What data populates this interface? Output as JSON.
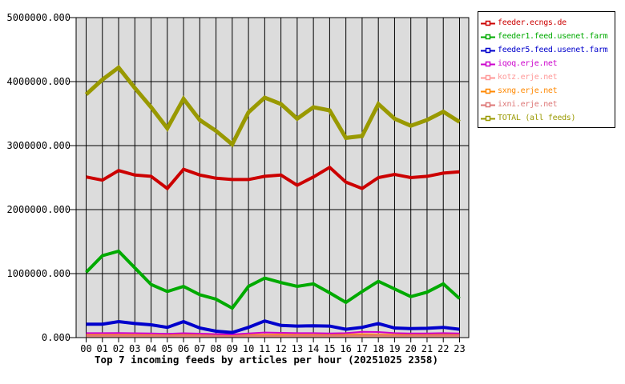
{
  "chart_data": {
    "type": "line",
    "title": "Top 7 incoming feeds by articles per hour (20251025 2358)",
    "plot_bg": "#dcdcdc",
    "grid_color": "#000000",
    "ylim": [
      0,
      5000000
    ],
    "y_tick_labels": [
      "5000000.000",
      "4000000.000",
      "3000000.000",
      "2000000.000",
      "1000000.000",
      "0.000"
    ],
    "x_labels": [
      "00",
      "01",
      "02",
      "03",
      "04",
      "05",
      "06",
      "07",
      "08",
      "09",
      "10",
      "11",
      "12",
      "13",
      "14",
      "15",
      "16",
      "17",
      "18",
      "19",
      "20",
      "21",
      "22",
      "23"
    ],
    "series": [
      {
        "name": "kotz.erje.net",
        "color": "#ff9999",
        "fill": "#e59080",
        "style": "area",
        "width": 2,
        "values": [
          55000,
          52000,
          52000,
          50000,
          50000,
          45000,
          65000,
          50000,
          45000,
          40000,
          50000,
          52000,
          52000,
          50000,
          50000,
          50000,
          55000,
          60000,
          55000,
          50000,
          52000,
          55000,
          60000,
          55000
        ]
      },
      {
        "name": "sxng.erje.net",
        "color": "#ff8800",
        "style": "line",
        "width": 2,
        "values": [
          40000,
          40000,
          40000,
          40000,
          38000,
          35000,
          60000,
          40000,
          35000,
          30000,
          40000,
          42000,
          45000,
          40000,
          40000,
          40000,
          45000,
          50000,
          45000,
          42000,
          45000,
          50000,
          55000,
          50000
        ]
      },
      {
        "name": "ixni.erje.net",
        "color": "#dd7777",
        "style": "line",
        "width": 2,
        "values": [
          30000,
          30000,
          30000,
          30000,
          28000,
          25000,
          32000,
          30000,
          25000,
          20000,
          30000,
          30000,
          30000,
          30000,
          30000,
          30000,
          32000,
          35000,
          35000,
          30000,
          30000,
          32000,
          35000,
          32000
        ]
      },
      {
        "name": "iqoq.erje.net",
        "color": "#cc00cc",
        "style": "line",
        "width": 2,
        "values": [
          70000,
          70000,
          72000,
          68000,
          65000,
          60000,
          68000,
          62000,
          55000,
          50000,
          65000,
          80000,
          75000,
          70000,
          70000,
          65000,
          70000,
          90000,
          88000,
          70000,
          65000,
          65000,
          70000,
          65000
        ]
      },
      {
        "name": "feeder5.feed.usenet.farm",
        "color": "#0000cc",
        "style": "line",
        "width": 4,
        "values": [
          210000,
          210000,
          250000,
          220000,
          200000,
          160000,
          250000,
          150000,
          100000,
          80000,
          160000,
          260000,
          190000,
          180000,
          185000,
          180000,
          130000,
          160000,
          220000,
          150000,
          140000,
          145000,
          160000,
          130000
        ]
      },
      {
        "name": "feeder1.feed.usenet.farm",
        "color": "#00aa00",
        "style": "line",
        "width": 4,
        "values": [
          1020000,
          1280000,
          1350000,
          1090000,
          830000,
          720000,
          800000,
          670000,
          600000,
          460000,
          800000,
          930000,
          860000,
          800000,
          840000,
          700000,
          550000,
          720000,
          880000,
          760000,
          640000,
          710000,
          840000,
          610000
        ]
      },
      {
        "name": "feeder.ecngs.de",
        "color": "#cc0000",
        "style": "line",
        "width": 4,
        "values": [
          2510000,
          2460000,
          2610000,
          2540000,
          2520000,
          2330000,
          2630000,
          2540000,
          2490000,
          2470000,
          2470000,
          2520000,
          2540000,
          2380000,
          2510000,
          2660000,
          2430000,
          2330000,
          2500000,
          2550000,
          2500000,
          2520000,
          2570000,
          2590000
        ]
      },
      {
        "name": "TOTAL (all feeds)",
        "color": "#999900",
        "style": "line",
        "width": 5,
        "values": [
          3800000,
          4030000,
          4220000,
          3900000,
          3600000,
          3270000,
          3730000,
          3400000,
          3230000,
          3020000,
          3520000,
          3750000,
          3650000,
          3420000,
          3600000,
          3550000,
          3120000,
          3150000,
          3650000,
          3420000,
          3310000,
          3400000,
          3530000,
          3370000
        ]
      }
    ]
  },
  "legend": {
    "order": [
      "feeder.ecngs.de",
      "feeder1.feed.usenet.farm",
      "feeder5.feed.usenet.farm",
      "iqoq.erje.net",
      "kotz.erje.net",
      "sxng.erje.net",
      "ixni.erje.net",
      "TOTAL (all feeds)"
    ]
  }
}
